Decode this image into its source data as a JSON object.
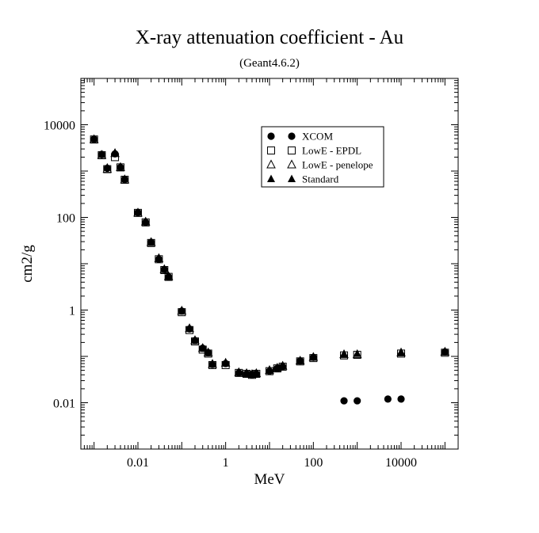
{
  "chart_data": {
    "type": "scatter",
    "title": "X-ray attenuation coefficient - Au",
    "subtitle": "(Geant4.6.2)",
    "xlabel": "MeV",
    "ylabel": "cm2/g",
    "x_scale": "log",
    "y_scale": "log",
    "xlim": [
      0.0005,
      200000
    ],
    "ylim": [
      0.001,
      100000
    ],
    "x_tick_labels": [
      "0.01",
      "1",
      "100",
      "10000"
    ],
    "y_tick_labels": [
      "0.01",
      "1",
      "100",
      "10000"
    ],
    "grid": false,
    "legend_position": "top-right",
    "series": [
      {
        "name": "XCOM",
        "marker": "circle-filled",
        "points": [
          [
            0.001,
            4900
          ],
          [
            0.0015,
            2300
          ],
          [
            0.002,
            1150
          ],
          [
            0.003,
            2350
          ],
          [
            0.004,
            1200
          ],
          [
            0.005,
            660
          ],
          [
            0.01,
            128
          ],
          [
            0.015,
            78
          ],
          [
            0.02,
            29
          ],
          [
            0.03,
            12.5
          ],
          [
            0.04,
            7.5
          ],
          [
            0.05,
            5.2
          ],
          [
            0.1,
            0.95
          ],
          [
            0.15,
            0.39
          ],
          [
            0.2,
            0.22
          ],
          [
            0.3,
            0.15
          ],
          [
            0.4,
            0.12
          ],
          [
            0.5,
            0.067
          ],
          [
            1,
            0.07
          ],
          [
            2,
            0.044
          ],
          [
            3,
            0.042
          ],
          [
            4,
            0.04
          ],
          [
            5,
            0.042
          ],
          [
            10,
            0.048
          ],
          [
            15,
            0.055
          ],
          [
            20,
            0.06
          ],
          [
            50,
            0.08
          ],
          [
            100,
            0.095
          ],
          [
            500,
            0.011
          ],
          [
            1000,
            0.011
          ],
          [
            5000,
            0.012
          ],
          [
            10000,
            0.012
          ],
          [
            100000,
            0.125
          ]
        ]
      },
      {
        "name": "LowE - EPDL",
        "marker": "square-open",
        "points": [
          [
            0.001,
            4800
          ],
          [
            0.0015,
            2200
          ],
          [
            0.002,
            1100
          ],
          [
            0.003,
            2000
          ],
          [
            0.004,
            1200
          ],
          [
            0.005,
            650
          ],
          [
            0.01,
            125
          ],
          [
            0.015,
            78
          ],
          [
            0.02,
            28
          ],
          [
            0.03,
            12.5
          ],
          [
            0.04,
            7.3
          ],
          [
            0.05,
            5.2
          ],
          [
            0.1,
            0.9
          ],
          [
            0.15,
            0.37
          ],
          [
            0.2,
            0.21
          ],
          [
            0.3,
            0.14
          ],
          [
            0.4,
            0.115
          ],
          [
            0.5,
            0.065
          ],
          [
            1,
            0.065
          ],
          [
            2,
            0.044
          ],
          [
            3,
            0.042
          ],
          [
            4,
            0.04
          ],
          [
            5,
            0.042
          ],
          [
            10,
            0.048
          ],
          [
            15,
            0.055
          ],
          [
            20,
            0.06
          ],
          [
            50,
            0.078
          ],
          [
            100,
            0.092
          ],
          [
            500,
            0.105
          ],
          [
            1000,
            0.108
          ],
          [
            10000,
            0.115
          ],
          [
            100000,
            0.12
          ]
        ]
      },
      {
        "name": "LowE - penelope",
        "marker": "triangle-open",
        "points": [
          [
            0.001,
            4800
          ],
          [
            0.0015,
            2200
          ],
          [
            0.002,
            1100
          ],
          [
            0.003,
            2400
          ],
          [
            0.004,
            1200
          ],
          [
            0.005,
            650
          ],
          [
            0.01,
            125
          ],
          [
            0.015,
            80
          ],
          [
            0.02,
            29
          ],
          [
            0.03,
            13
          ],
          [
            0.04,
            7.5
          ],
          [
            0.05,
            5.3
          ],
          [
            0.1,
            0.95
          ],
          [
            0.15,
            0.4
          ],
          [
            0.2,
            0.22
          ],
          [
            0.3,
            0.15
          ],
          [
            0.4,
            0.12
          ],
          [
            0.5,
            0.068
          ],
          [
            1,
            0.072
          ],
          [
            2,
            0.045
          ],
          [
            3,
            0.043
          ],
          [
            4,
            0.041
          ],
          [
            5,
            0.043
          ],
          [
            10,
            0.05
          ],
          [
            15,
            0.056
          ],
          [
            20,
            0.062
          ],
          [
            50,
            0.08
          ],
          [
            100,
            0.096
          ],
          [
            500,
            0.11
          ],
          [
            1000,
            0.11
          ],
          [
            10000,
            0.12
          ],
          [
            100000,
            0.125
          ]
        ]
      },
      {
        "name": "Standard",
        "marker": "triangle-filled",
        "points": [
          [
            0.001,
            5000
          ],
          [
            0.0015,
            2300
          ],
          [
            0.002,
            1200
          ],
          [
            0.003,
            2500
          ],
          [
            0.004,
            1250
          ],
          [
            0.005,
            680
          ],
          [
            0.01,
            130
          ],
          [
            0.015,
            82
          ],
          [
            0.02,
            30
          ],
          [
            0.03,
            13.5
          ],
          [
            0.04,
            7.8
          ],
          [
            0.05,
            5.4
          ],
          [
            0.1,
            1.0
          ],
          [
            0.15,
            0.41
          ],
          [
            0.2,
            0.23
          ],
          [
            0.3,
            0.155
          ],
          [
            0.4,
            0.125
          ],
          [
            0.5,
            0.07
          ],
          [
            1,
            0.074
          ],
          [
            2,
            0.046
          ],
          [
            3,
            0.044
          ],
          [
            4,
            0.042
          ],
          [
            5,
            0.044
          ],
          [
            10,
            0.051
          ],
          [
            15,
            0.058
          ],
          [
            20,
            0.064
          ],
          [
            50,
            0.082
          ],
          [
            100,
            0.098
          ],
          [
            500,
            0.112
          ],
          [
            1000,
            0.114
          ],
          [
            10000,
            0.122
          ],
          [
            100000,
            0.128
          ]
        ]
      }
    ]
  }
}
